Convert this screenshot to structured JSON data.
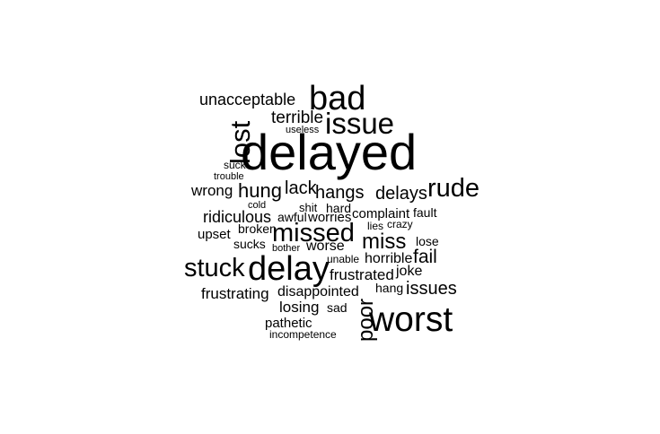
{
  "word_cloud": {
    "text_color": "#000000",
    "background_color": "#ffffff",
    "words": [
      {
        "id": "delayed",
        "text": "delayed",
        "orientation": "horizontal"
      },
      {
        "id": "bad",
        "text": "bad",
        "orientation": "horizontal"
      },
      {
        "id": "issue",
        "text": "issue",
        "orientation": "horizontal"
      },
      {
        "id": "lost",
        "text": "lost",
        "orientation": "vertical"
      },
      {
        "id": "unacceptable",
        "text": "unacceptable",
        "orientation": "horizontal"
      },
      {
        "id": "terrible",
        "text": "terrible",
        "orientation": "horizontal"
      },
      {
        "id": "useless",
        "text": "useless",
        "orientation": "horizontal"
      },
      {
        "id": "suck",
        "text": "suck",
        "orientation": "horizontal"
      },
      {
        "id": "trouble",
        "text": "trouble",
        "orientation": "horizontal"
      },
      {
        "id": "wrong",
        "text": "wrong",
        "orientation": "horizontal"
      },
      {
        "id": "hung",
        "text": "hung",
        "orientation": "horizontal"
      },
      {
        "id": "lack",
        "text": "lack",
        "orientation": "horizontal"
      },
      {
        "id": "hangs",
        "text": "hangs",
        "orientation": "horizontal"
      },
      {
        "id": "delays",
        "text": "delays",
        "orientation": "horizontal"
      },
      {
        "id": "rude",
        "text": "rude",
        "orientation": "horizontal"
      },
      {
        "id": "cold",
        "text": "cold",
        "orientation": "horizontal"
      },
      {
        "id": "shit",
        "text": "shit",
        "orientation": "horizontal"
      },
      {
        "id": "hard",
        "text": "hard",
        "orientation": "horizontal"
      },
      {
        "id": "fault",
        "text": "fault",
        "orientation": "horizontal"
      },
      {
        "id": "ridiculous",
        "text": "ridiculous",
        "orientation": "horizontal"
      },
      {
        "id": "awful",
        "text": "awful",
        "orientation": "horizontal"
      },
      {
        "id": "worries",
        "text": "worries",
        "orientation": "horizontal"
      },
      {
        "id": "complaint",
        "text": "complaint",
        "orientation": "horizontal"
      },
      {
        "id": "lies",
        "text": "lies",
        "orientation": "horizontal"
      },
      {
        "id": "crazy",
        "text": "crazy",
        "orientation": "horizontal"
      },
      {
        "id": "broken",
        "text": "broken",
        "orientation": "horizontal"
      },
      {
        "id": "missed",
        "text": "missed",
        "orientation": "horizontal"
      },
      {
        "id": "upset",
        "text": "upset",
        "orientation": "horizontal"
      },
      {
        "id": "miss",
        "text": "miss",
        "orientation": "horizontal"
      },
      {
        "id": "lose",
        "text": "lose",
        "orientation": "horizontal"
      },
      {
        "id": "sucks",
        "text": "sucks",
        "orientation": "horizontal"
      },
      {
        "id": "bother",
        "text": "bother",
        "orientation": "horizontal"
      },
      {
        "id": "worse",
        "text": "worse",
        "orientation": "horizontal"
      },
      {
        "id": "fail",
        "text": "fail",
        "orientation": "horizontal"
      },
      {
        "id": "unable",
        "text": "unable",
        "orientation": "horizontal"
      },
      {
        "id": "horrible",
        "text": "horrible",
        "orientation": "horizontal"
      },
      {
        "id": "stuck",
        "text": "stuck",
        "orientation": "horizontal"
      },
      {
        "id": "delay",
        "text": "delay",
        "orientation": "horizontal"
      },
      {
        "id": "frustrated",
        "text": "frustrated",
        "orientation": "horizontal"
      },
      {
        "id": "joke",
        "text": "joke",
        "orientation": "horizontal"
      },
      {
        "id": "hang",
        "text": "hang",
        "orientation": "horizontal"
      },
      {
        "id": "issues",
        "text": "issues",
        "orientation": "horizontal"
      },
      {
        "id": "frustrating",
        "text": "frustrating",
        "orientation": "horizontal"
      },
      {
        "id": "disappointed",
        "text": "disappointed",
        "orientation": "horizontal"
      },
      {
        "id": "losing",
        "text": "losing",
        "orientation": "horizontal"
      },
      {
        "id": "sad",
        "text": "sad",
        "orientation": "horizontal"
      },
      {
        "id": "poor",
        "text": "poor",
        "orientation": "vertical"
      },
      {
        "id": "worst",
        "text": "worst",
        "orientation": "horizontal"
      },
      {
        "id": "pathetic",
        "text": "pathetic",
        "orientation": "horizontal"
      },
      {
        "id": "incompetence",
        "text": "incompetence",
        "orientation": "horizontal"
      }
    ]
  }
}
